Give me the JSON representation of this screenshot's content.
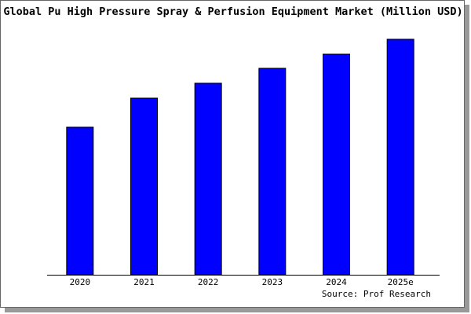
{
  "chart_data": {
    "type": "bar",
    "title": "Global Pu High Pressure Spray & Perfusion Equipment Market (Million USD)",
    "categories": [
      "2020",
      "2021",
      "2022",
      "2023",
      "2024",
      "2025e"
    ],
    "values": [
      188,
      225,
      244,
      263,
      281,
      300
    ],
    "color": "#0000ff",
    "ylim": [
      0,
      300
    ],
    "source": "Source: Prof Research"
  }
}
